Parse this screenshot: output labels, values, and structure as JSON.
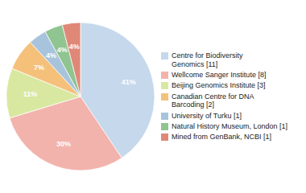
{
  "chart_data": {
    "type": "pie",
    "categories": [
      "Centre for Biodiversity\nGenomics [11]",
      "Wellcome Sanger Institute [8]",
      "Beijing Genomics Institute [3]",
      "Canadian Centre for DNA\nBarcoding [2]",
      "University of Turku [1]",
      "Natural History Museum, London [1]",
      "Mined from GenBank, NCBI [1]"
    ],
    "values": [
      41,
      30,
      11,
      7,
      4,
      4,
      4
    ],
    "value_labels": [
      "41%",
      "30%",
      "11%",
      "7%",
      "4%",
      "4%",
      "4%"
    ],
    "colors": [
      "#c5d8ec",
      "#f2b3ac",
      "#d9e8a0",
      "#f5c07a",
      "#a8c4dc",
      "#90c490",
      "#e08878"
    ],
    "data_labels": true,
    "legend": "right"
  }
}
